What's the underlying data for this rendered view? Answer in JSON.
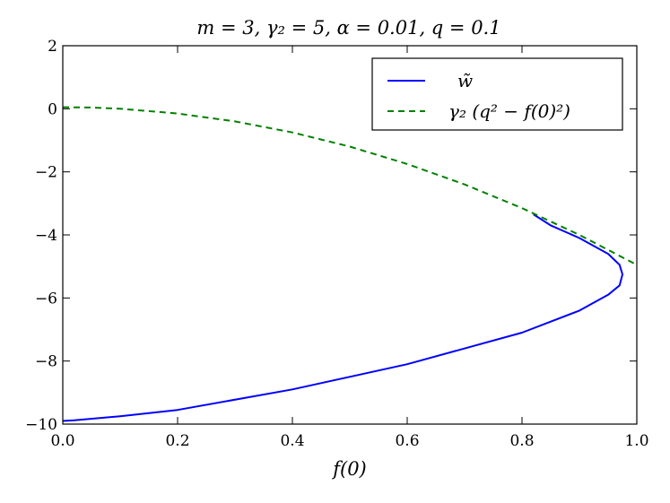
{
  "chart_data": {
    "type": "line",
    "title": "m = 3, γ₂ = 5, α = 0.01, q = 0.1",
    "xlabel": "f(0)",
    "ylabel": "",
    "xlim": [
      0.0,
      1.0
    ],
    "ylim": [
      -10,
      2
    ],
    "xticks": [
      "0.0",
      "0.2",
      "0.4",
      "0.6",
      "0.8",
      "1.0"
    ],
    "yticks": [
      "2",
      "0",
      "−2",
      "−4",
      "−6",
      "−8",
      "−10"
    ],
    "xtick_values": [
      0.0,
      0.2,
      0.4,
      0.6,
      0.8,
      1.0
    ],
    "ytick_values": [
      2,
      0,
      -2,
      -4,
      -6,
      -8,
      -10
    ],
    "grid": false,
    "legend_position": "top-right",
    "series": [
      {
        "name": "w̃",
        "color": "#0000ff",
        "style": "solid",
        "x": [
          0.0,
          0.02,
          0.1,
          0.2,
          0.4,
          0.6,
          0.8,
          0.9,
          0.95,
          0.97,
          0.975,
          0.97,
          0.95,
          0.9,
          0.85,
          0.82
        ],
        "y": [
          -9.9,
          -9.88,
          -9.75,
          -9.55,
          -8.9,
          -8.1,
          -7.1,
          -6.4,
          -5.9,
          -5.6,
          -5.25,
          -4.95,
          -4.6,
          -4.1,
          -3.7,
          -3.35
        ]
      },
      {
        "name": "γ₂ (q² − f(0)²)",
        "color": "#008000",
        "style": "dashed",
        "x": [
          0.0,
          0.05,
          0.1,
          0.2,
          0.3,
          0.4,
          0.5,
          0.6,
          0.7,
          0.8,
          0.9,
          1.0
        ],
        "y": [
          0.05,
          0.04,
          0.0,
          -0.15,
          -0.4,
          -0.75,
          -1.2,
          -1.75,
          -2.4,
          -3.15,
          -4.0,
          -4.95
        ]
      }
    ]
  }
}
